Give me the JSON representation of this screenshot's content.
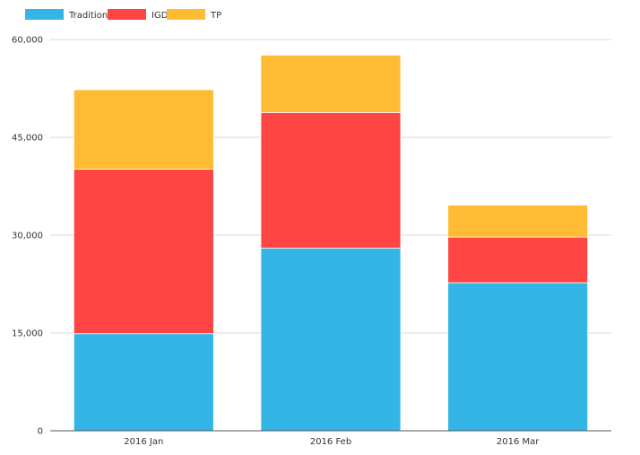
{
  "chart_data": {
    "type": "bar",
    "stacked": true,
    "categories": [
      "2016 Jan",
      "2016 Feb",
      "2016 Mar"
    ],
    "series": [
      {
        "name": "Tradition",
        "color": "#33b5e5",
        "values": [
          14900,
          28000,
          22700
        ]
      },
      {
        "name": "IGDL",
        "color": "#ff4444",
        "values": [
          25200,
          20800,
          7000
        ]
      },
      {
        "name": "TP",
        "color": "#ffbb33",
        "values": [
          12200,
          8800,
          4900
        ]
      }
    ],
    "yticks": [
      "0",
      "15,000",
      "30,000",
      "45,000",
      "60,000"
    ],
    "ytick_values": [
      0,
      15000,
      30000,
      45000,
      60000
    ],
    "ylim": [
      0,
      60000
    ],
    "grid": true,
    "legend_position": "top-left",
    "title": "",
    "xlabel": "",
    "ylabel": ""
  }
}
